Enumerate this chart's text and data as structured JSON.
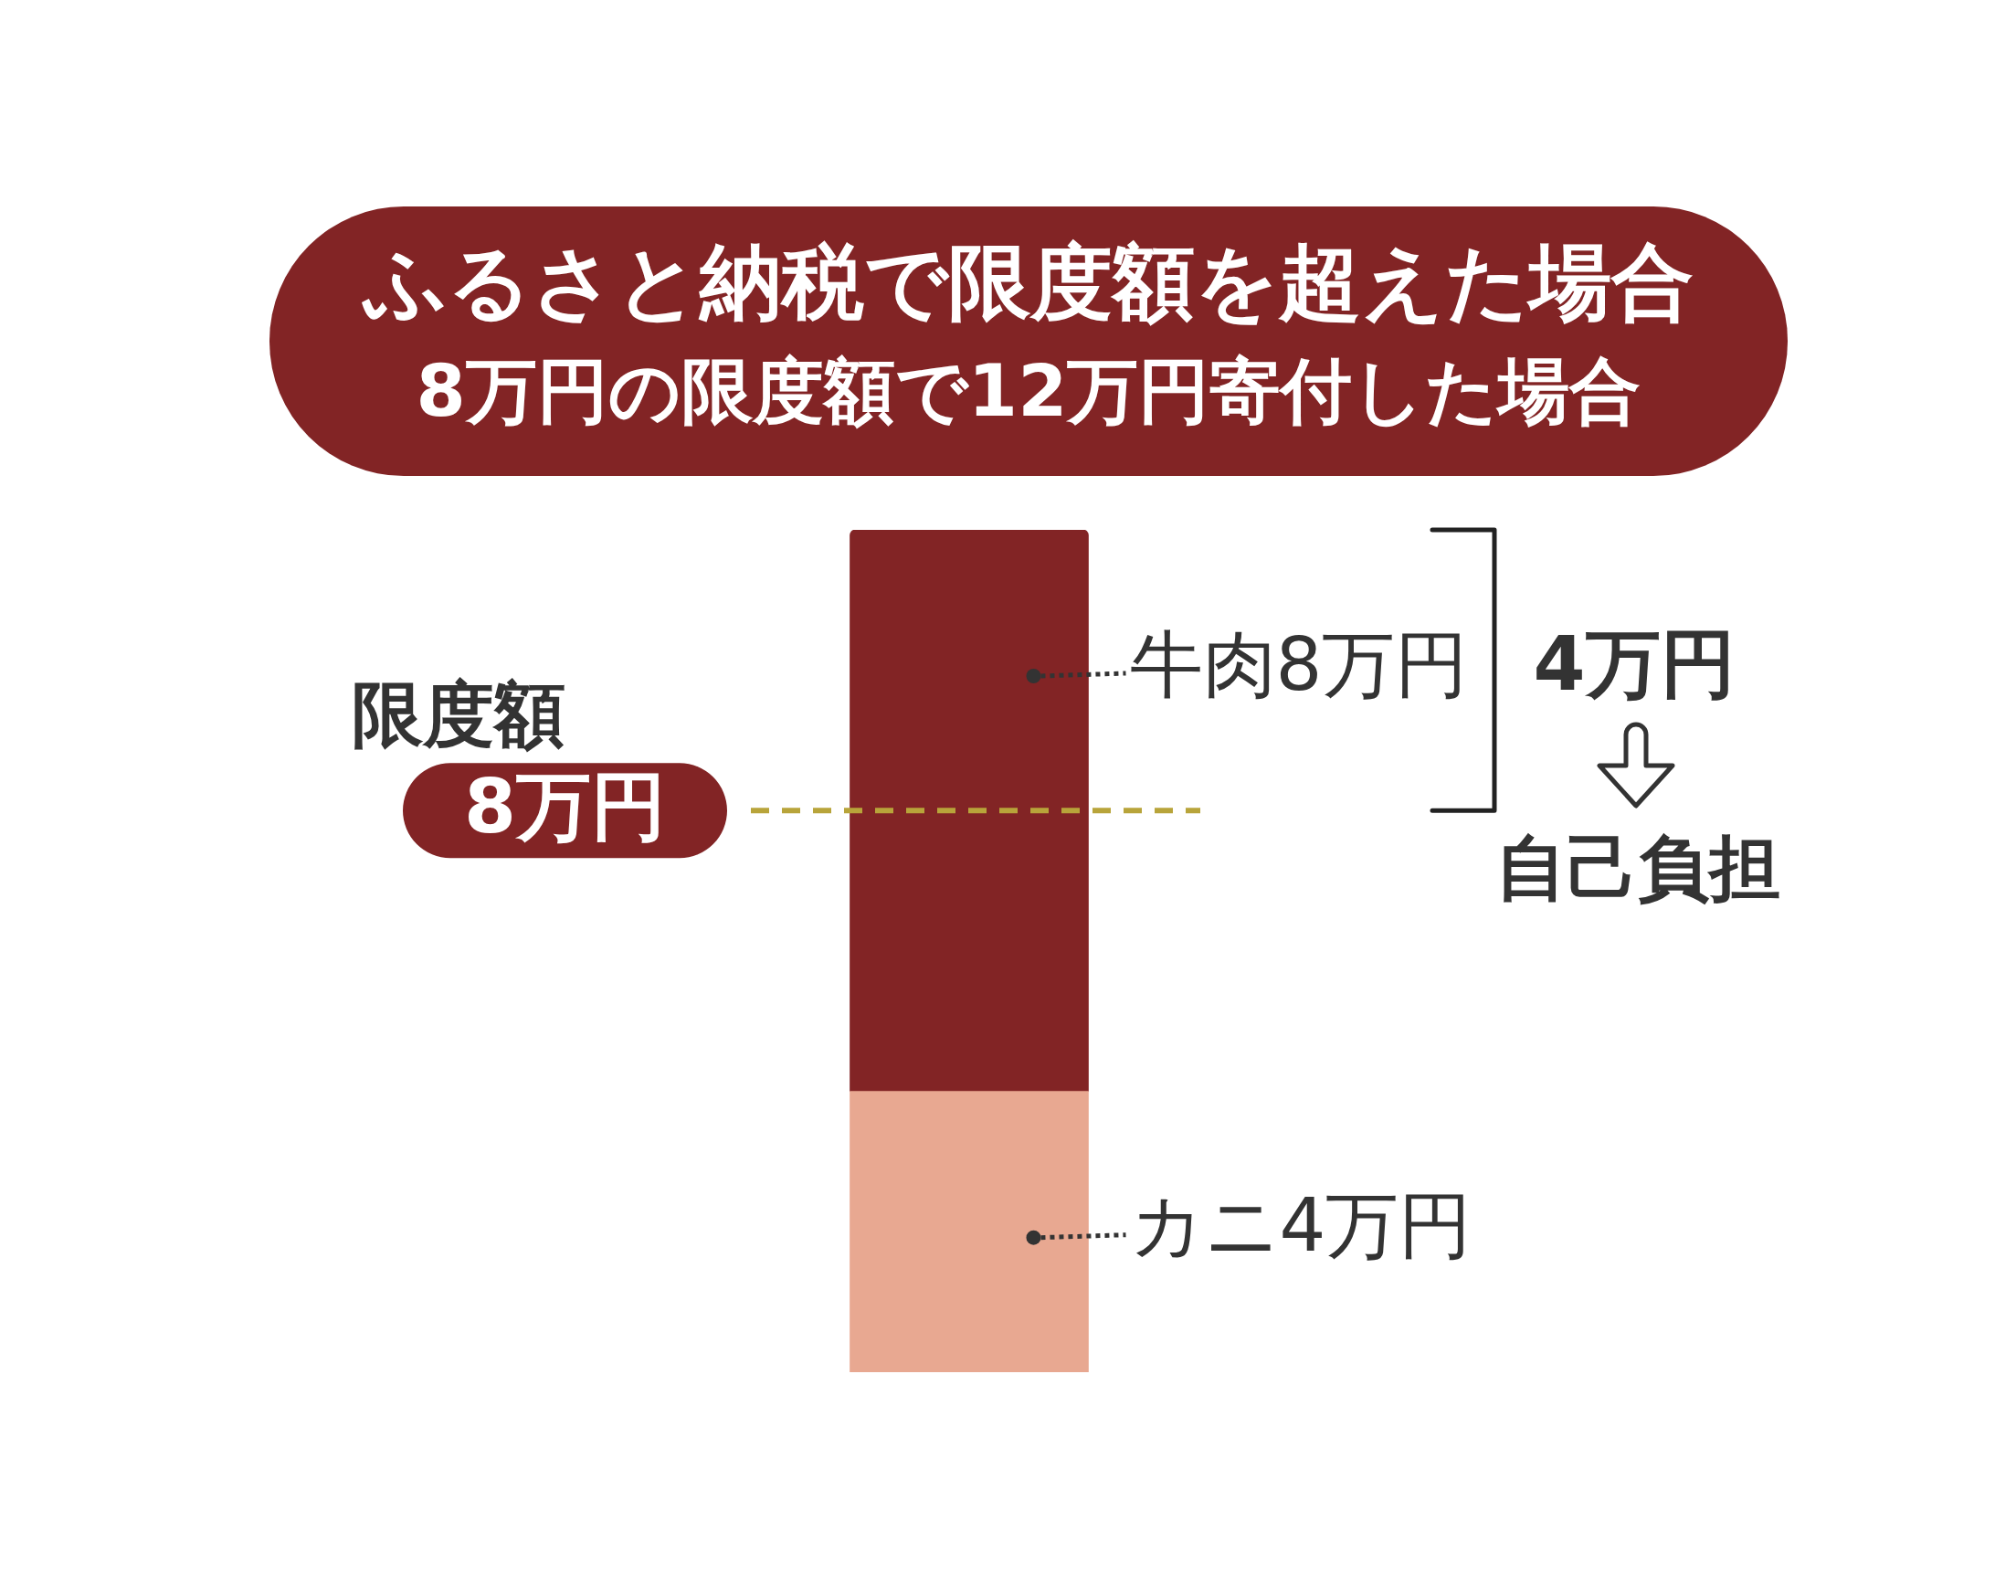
{
  "chart_data": {
    "type": "bar",
    "title": "ふるさと納税で限度額を超えた場合",
    "subtitle": "8万円の限度額で12万円寄付した場合",
    "categories": [
      null
    ],
    "stacked": true,
    "series": [
      {
        "color": "#e8a891",
        "values": [
          4
        ],
        "value_labels": [
          "カニ4万円"
        ]
      },
      {
        "color": "#822425",
        "values": [
          8
        ],
        "value_labels": [
          "牛肉8万円"
        ]
      }
    ],
    "ref_lines": [
      {
        "axis": "y",
        "value": 8,
        "label": "限度額 8万円",
        "color": "#b8a43a",
        "line_style": "dashed"
      }
    ],
    "annotations": [
      "4万円",
      "自己負担"
    ],
    "tick_labels": false
  }
}
